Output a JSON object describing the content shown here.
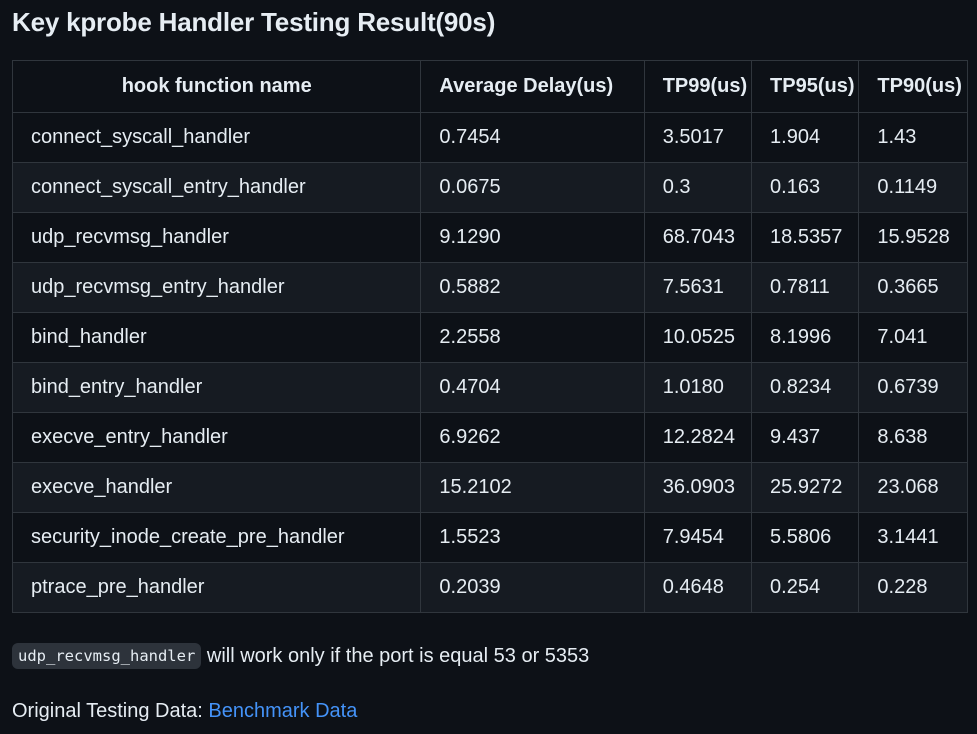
{
  "title": "Key kprobe Handler Testing Result(90s)",
  "table": {
    "headers": [
      "hook function name",
      "Average Delay(us)",
      "TP99(us)",
      "TP95(us)",
      "TP90(us)"
    ],
    "rows": [
      [
        "connect_syscall_handler",
        "0.7454",
        "3.5017",
        "1.904",
        "1.43"
      ],
      [
        "connect_syscall_entry_handler",
        "0.0675",
        "0.3",
        "0.163",
        "0.1149"
      ],
      [
        "udp_recvmsg_handler",
        "9.1290",
        "68.7043",
        "18.5357",
        "15.9528"
      ],
      [
        "udp_recvmsg_entry_handler",
        "0.5882",
        "7.5631",
        "0.7811",
        "0.3665"
      ],
      [
        "bind_handler",
        "2.2558",
        "10.0525",
        "8.1996",
        "7.041"
      ],
      [
        "bind_entry_handler",
        "0.4704",
        "1.0180",
        "0.8234",
        "0.6739"
      ],
      [
        "execve_entry_handler",
        "6.9262",
        "12.2824",
        "9.437",
        "8.638"
      ],
      [
        "execve_handler",
        "15.2102",
        "36.0903",
        "25.9272",
        "23.068"
      ],
      [
        "security_inode_create_pre_handler",
        "1.5523",
        "7.9454",
        "5.5806",
        "3.1441"
      ],
      [
        "ptrace_pre_handler",
        "0.2039",
        "0.4648",
        "0.254",
        "0.228"
      ]
    ]
  },
  "note": {
    "code": "udp_recvmsg_handler",
    "text": " will work only if the port is equal 53 or 5353"
  },
  "source": {
    "label": "Original Testing Data: ",
    "link_text": "Benchmark Data"
  },
  "colors": {
    "background": "#0d1117",
    "text": "#e6edf3",
    "border": "#30363d",
    "row_alt": "#161b22",
    "link": "#4493f8",
    "code_bg": "#2d333b"
  }
}
